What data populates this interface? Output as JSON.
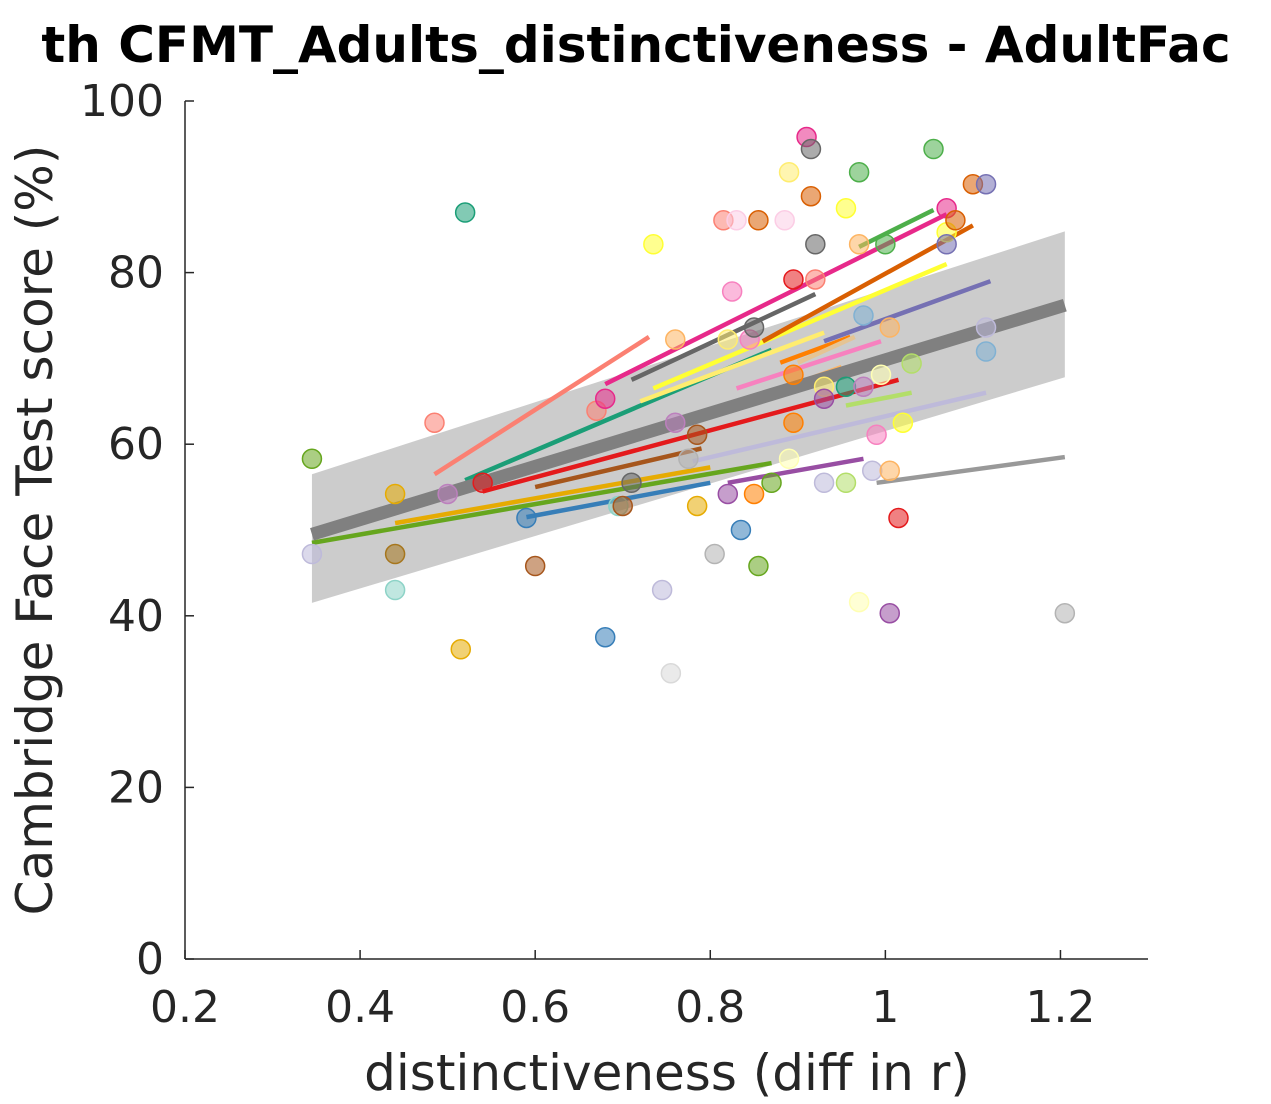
{
  "chart_data": {
    "type": "scatter",
    "title": "th CFMT_Adults_distinctiveness - AdultFac",
    "xlabel": "distinctiveness (diff in r)",
    "ylabel": "Cambridge Face Test score (%)",
    "xlim": [
      0.2,
      1.3
    ],
    "ylim": [
      0,
      100
    ],
    "xticks": [
      "0.2",
      "0.4",
      "0.6",
      "0.8",
      "1",
      "1.2"
    ],
    "yticks": [
      "0",
      "20",
      "40",
      "60",
      "80",
      "100"
    ],
    "grid": false,
    "legend": "none",
    "ci_band": {
      "x": [
        0.345,
        1.205
      ],
      "upper": [
        56.5,
        84.8
      ],
      "lower": [
        41.5,
        67.8
      ],
      "color": "#cccccc"
    },
    "overall_fit": {
      "x": [
        0.345,
        1.205
      ],
      "y": [
        49.5,
        76.2
      ],
      "color": "#808080"
    },
    "subject_fits": [
      {
        "x": [
          0.345,
          0.87
        ],
        "y": [
          48.5,
          57.8
        ],
        "color": "#66a61e"
      },
      {
        "x": [
          0.44,
          0.8
        ],
        "y": [
          50.8,
          57.3
        ],
        "color": "#e6ab02"
      },
      {
        "x": [
          0.485,
          0.73
        ],
        "y": [
          56.5,
          72.5
        ],
        "color": "#fb8072"
      },
      {
        "x": [
          0.52,
          0.87
        ],
        "y": [
          55.8,
          71.0
        ],
        "color": "#1b9e77"
      },
      {
        "x": [
          0.54,
          1.015
        ],
        "y": [
          54.5,
          67.5
        ],
        "color": "#e41a1c"
      },
      {
        "x": [
          0.59,
          0.8
        ],
        "y": [
          51.5,
          55.5
        ],
        "color": "#377eb8"
      },
      {
        "x": [
          0.6,
          0.79
        ],
        "y": [
          55.0,
          59.5
        ],
        "color": "#a6561c"
      },
      {
        "x": [
          0.68,
          1.07
        ],
        "y": [
          67.0,
          86.8
        ],
        "color": "#e7298a"
      },
      {
        "x": [
          0.71,
          0.92
        ],
        "y": [
          67.5,
          77.5
        ],
        "color": "#666666"
      },
      {
        "x": [
          0.72,
          0.93
        ],
        "y": [
          65.0,
          73.0
        ],
        "color": "#ffed6f"
      },
      {
        "x": [
          0.735,
          1.07
        ],
        "y": [
          66.5,
          81.0
        ],
        "color": "#ffff33"
      },
      {
        "x": [
          0.78,
          1.115
        ],
        "y": [
          58.0,
          66.0
        ],
        "color": "#bebada"
      },
      {
        "x": [
          0.79,
          0.95
        ],
        "y": [
          63.0,
          69.0
        ],
        "color": "#fdb462"
      },
      {
        "x": [
          0.82,
          0.975
        ],
        "y": [
          55.5,
          58.3
        ],
        "color": "#984ea3"
      },
      {
        "x": [
          0.83,
          0.995
        ],
        "y": [
          66.5,
          72.0
        ],
        "color": "#f781bf"
      },
      {
        "x": [
          0.86,
          1.1
        ],
        "y": [
          72.0,
          85.5
        ],
        "color": "#d95f02"
      },
      {
        "x": [
          0.88,
          0.96
        ],
        "y": [
          69.5,
          72.5
        ],
        "color": "#ff7f00"
      },
      {
        "x": [
          0.9,
          0.965
        ],
        "y": [
          69.5,
          72.5
        ],
        "color": "#e5c494"
      },
      {
        "x": [
          0.93,
          1.12
        ],
        "y": [
          72.0,
          79.0
        ],
        "color": "#7570b3"
      },
      {
        "x": [
          0.955,
          1.03
        ],
        "y": [
          64.5,
          66.0
        ],
        "color": "#b3de69"
      },
      {
        "x": [
          0.97,
          1.055
        ],
        "y": [
          83.0,
          87.3
        ],
        "color": "#4daf4a"
      },
      {
        "x": [
          0.99,
          1.12
        ],
        "y": [
          70.0,
          74.0
        ],
        "color": "#80b1d3"
      },
      {
        "x": [
          0.99,
          1.205
        ],
        "y": [
          55.5,
          58.5
        ],
        "color": "#999999"
      }
    ],
    "points": [
      {
        "x": 0.345,
        "y": 58.3,
        "color": "#66a61e"
      },
      {
        "x": 0.345,
        "y": 47.2,
        "color": "#bebada"
      },
      {
        "x": 0.44,
        "y": 54.2,
        "color": "#e6ab02"
      },
      {
        "x": 0.44,
        "y": 47.2,
        "color": "#a6761d"
      },
      {
        "x": 0.44,
        "y": 43.0,
        "color": "#8dd3c7"
      },
      {
        "x": 0.485,
        "y": 62.5,
        "color": "#fb8072"
      },
      {
        "x": 0.5,
        "y": 54.2,
        "color": "#bc80bd"
      },
      {
        "x": 0.515,
        "y": 36.1,
        "color": "#e6ab02"
      },
      {
        "x": 0.52,
        "y": 87.0,
        "color": "#1b9e77"
      },
      {
        "x": 0.54,
        "y": 55.5,
        "color": "#e41a1c"
      },
      {
        "x": 0.59,
        "y": 51.4,
        "color": "#377eb8"
      },
      {
        "x": 0.6,
        "y": 45.8,
        "color": "#a6561c"
      },
      {
        "x": 0.67,
        "y": 63.9,
        "color": "#fb8072"
      },
      {
        "x": 0.68,
        "y": 65.3,
        "color": "#e7298a"
      },
      {
        "x": 0.68,
        "y": 37.5,
        "color": "#377eb8"
      },
      {
        "x": 0.695,
        "y": 52.8,
        "color": "#8dd3c7"
      },
      {
        "x": 0.7,
        "y": 52.8,
        "color": "#a6561c"
      },
      {
        "x": 0.71,
        "y": 55.5,
        "color": "#666666"
      },
      {
        "x": 0.735,
        "y": 83.3,
        "color": "#ffff33"
      },
      {
        "x": 0.745,
        "y": 43.0,
        "color": "#bebada"
      },
      {
        "x": 0.755,
        "y": 33.3,
        "color": "#d9d9d9"
      },
      {
        "x": 0.76,
        "y": 72.2,
        "color": "#fdb462"
      },
      {
        "x": 0.76,
        "y": 62.5,
        "color": "#bc80bd"
      },
      {
        "x": 0.775,
        "y": 58.3,
        "color": "#b3b3b3"
      },
      {
        "x": 0.785,
        "y": 61.1,
        "color": "#a6561c"
      },
      {
        "x": 0.785,
        "y": 52.8,
        "color": "#e6ab02"
      },
      {
        "x": 0.805,
        "y": 47.2,
        "color": "#b3b3b3"
      },
      {
        "x": 0.815,
        "y": 86.1,
        "color": "#fb8072"
      },
      {
        "x": 0.82,
        "y": 72.2,
        "color": "#ffed6f"
      },
      {
        "x": 0.82,
        "y": 54.2,
        "color": "#984ea3"
      },
      {
        "x": 0.825,
        "y": 77.8,
        "color": "#f781bf"
      },
      {
        "x": 0.83,
        "y": 86.1,
        "color": "#fccde5"
      },
      {
        "x": 0.835,
        "y": 50.0,
        "color": "#377eb8"
      },
      {
        "x": 0.845,
        "y": 72.2,
        "color": "#f781bf"
      },
      {
        "x": 0.85,
        "y": 73.6,
        "color": "#666666"
      },
      {
        "x": 0.85,
        "y": 54.2,
        "color": "#ff7f00"
      },
      {
        "x": 0.855,
        "y": 86.1,
        "color": "#d95f02"
      },
      {
        "x": 0.855,
        "y": 45.8,
        "color": "#66a61e"
      },
      {
        "x": 0.87,
        "y": 55.5,
        "color": "#66a61e"
      },
      {
        "x": 0.885,
        "y": 86.1,
        "color": "#fccde5"
      },
      {
        "x": 0.89,
        "y": 91.7,
        "color": "#ffed6f"
      },
      {
        "x": 0.89,
        "y": 58.3,
        "color": "#ffffb3"
      },
      {
        "x": 0.895,
        "y": 79.2,
        "color": "#e41a1c"
      },
      {
        "x": 0.895,
        "y": 68.1,
        "color": "#ff7f00"
      },
      {
        "x": 0.895,
        "y": 62.5,
        "color": "#ff7f00"
      },
      {
        "x": 0.91,
        "y": 95.8,
        "color": "#e7298a"
      },
      {
        "x": 0.915,
        "y": 94.4,
        "color": "#666666"
      },
      {
        "x": 0.915,
        "y": 88.9,
        "color": "#d95f02"
      },
      {
        "x": 0.92,
        "y": 79.2,
        "color": "#fb8072"
      },
      {
        "x": 0.92,
        "y": 83.3,
        "color": "#666666"
      },
      {
        "x": 0.93,
        "y": 66.7,
        "color": "#ffed6f"
      },
      {
        "x": 0.93,
        "y": 65.3,
        "color": "#984ea3"
      },
      {
        "x": 0.93,
        "y": 55.5,
        "color": "#bebada"
      },
      {
        "x": 0.955,
        "y": 87.5,
        "color": "#ffff33"
      },
      {
        "x": 0.955,
        "y": 66.7,
        "color": "#1b9e77"
      },
      {
        "x": 0.955,
        "y": 55.5,
        "color": "#b3de69"
      },
      {
        "x": 0.97,
        "y": 91.7,
        "color": "#4daf4a"
      },
      {
        "x": 0.97,
        "y": 83.3,
        "color": "#fdb462"
      },
      {
        "x": 0.97,
        "y": 41.6,
        "color": "#ffffb3"
      },
      {
        "x": 0.975,
        "y": 75.0,
        "color": "#80b1d3"
      },
      {
        "x": 0.975,
        "y": 66.7,
        "color": "#bc80bd"
      },
      {
        "x": 0.985,
        "y": 56.9,
        "color": "#bebada"
      },
      {
        "x": 0.99,
        "y": 61.1,
        "color": "#f781bf"
      },
      {
        "x": 0.995,
        "y": 68.1,
        "color": "#ffffb3"
      },
      {
        "x": 1.0,
        "y": 83.3,
        "color": "#4daf4a"
      },
      {
        "x": 1.005,
        "y": 73.6,
        "color": "#fdb462"
      },
      {
        "x": 1.005,
        "y": 56.9,
        "color": "#fdb462"
      },
      {
        "x": 1.005,
        "y": 40.3,
        "color": "#984ea3"
      },
      {
        "x": 1.015,
        "y": 51.4,
        "color": "#e41a1c"
      },
      {
        "x": 1.02,
        "y": 62.5,
        "color": "#ffff33"
      },
      {
        "x": 1.03,
        "y": 69.4,
        "color": "#b3de69"
      },
      {
        "x": 1.055,
        "y": 94.4,
        "color": "#4daf4a"
      },
      {
        "x": 1.07,
        "y": 87.5,
        "color": "#e7298a"
      },
      {
        "x": 1.07,
        "y": 84.7,
        "color": "#ffff33"
      },
      {
        "x": 1.07,
        "y": 83.3,
        "color": "#7570b3"
      },
      {
        "x": 1.08,
        "y": 86.1,
        "color": "#d95f02"
      },
      {
        "x": 1.1,
        "y": 90.3,
        "color": "#d95f02"
      },
      {
        "x": 1.115,
        "y": 90.3,
        "color": "#7570b3"
      },
      {
        "x": 1.115,
        "y": 73.6,
        "color": "#bebada"
      },
      {
        "x": 1.115,
        "y": 70.8,
        "color": "#80b1d3"
      },
      {
        "x": 1.205,
        "y": 40.3,
        "color": "#b3b3b3"
      }
    ]
  }
}
